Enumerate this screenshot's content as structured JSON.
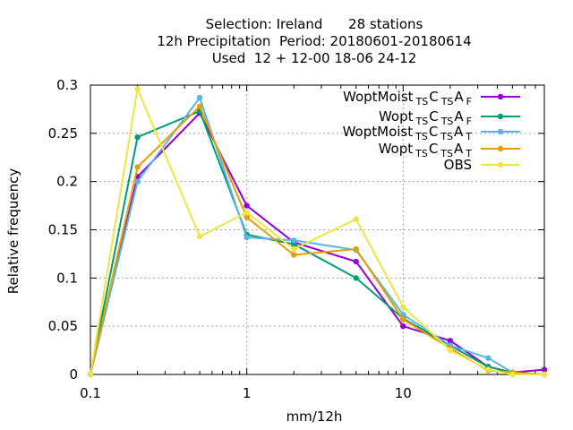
{
  "chart_data": {
    "type": "line",
    "title_lines": [
      "Selection: Ireland      28 stations",
      "12h Precipitation  Period: 20180601-20180614",
      "Used  12 + 12-00 18-06 24-12"
    ],
    "xlabel": "mm/12h",
    "ylabel": "Relative frequency",
    "xscale": "log",
    "xlim": [
      0.1,
      80
    ],
    "ylim": [
      0,
      0.3
    ],
    "xticks": [
      {
        "value": 0.1,
        "label": "0.1"
      },
      {
        "value": 1,
        "label": "1"
      },
      {
        "value": 10,
        "label": "10"
      }
    ],
    "yticks": [
      {
        "value": 0,
        "label": "0"
      },
      {
        "value": 0.05,
        "label": "0.05"
      },
      {
        "value": 0.1,
        "label": "0.1"
      },
      {
        "value": 0.15,
        "label": "0.15"
      },
      {
        "value": 0.2,
        "label": "0.2"
      },
      {
        "value": 0.25,
        "label": "0.25"
      },
      {
        "value": 0.3,
        "label": "0.3"
      }
    ],
    "grid": true,
    "legend_position": "top-right",
    "x": [
      0.1,
      0.2,
      0.5,
      1,
      2,
      5,
      10,
      20,
      35,
      50,
      80
    ],
    "series": [
      {
        "name": "WoptMoist",
        "name_sub_parts": [
          "TS",
          "C",
          "TS",
          "A",
          "F"
        ],
        "color": "#9400d3",
        "values": [
          0.0,
          0.205,
          0.271,
          0.175,
          0.137,
          0.117,
          0.05,
          0.035,
          0.008,
          0.002,
          0.005
        ]
      },
      {
        "name": "Wopt",
        "name_sub_parts": [
          "TS",
          "C",
          "TS",
          "A",
          "F"
        ],
        "color": "#009e73",
        "values": [
          0.0,
          0.246,
          0.273,
          0.145,
          0.135,
          0.1,
          0.058,
          0.03,
          0.008,
          0.002,
          0.0
        ]
      },
      {
        "name": "WoptMoist",
        "name_sub_parts": [
          "TS",
          "C",
          "TS",
          "A",
          "T"
        ],
        "color": "#56b4e9",
        "values": [
          0.0,
          0.2,
          0.287,
          0.142,
          0.139,
          0.129,
          0.062,
          0.03,
          0.017,
          0.002,
          0.0
        ]
      },
      {
        "name": "Wopt",
        "name_sub_parts": [
          "TS",
          "C",
          "TS",
          "A",
          "T"
        ],
        "color": "#e69f00",
        "values": [
          0.0,
          0.215,
          0.278,
          0.163,
          0.124,
          0.13,
          0.057,
          0.027,
          0.004,
          0.002,
          0.0
        ]
      },
      {
        "name": "OBS",
        "name_sub_parts": [],
        "color": "#f0e442",
        "values": [
          0.0,
          0.296,
          0.143,
          0.168,
          0.13,
          0.161,
          0.07,
          0.025,
          0.005,
          0.0,
          0.0
        ]
      }
    ]
  }
}
